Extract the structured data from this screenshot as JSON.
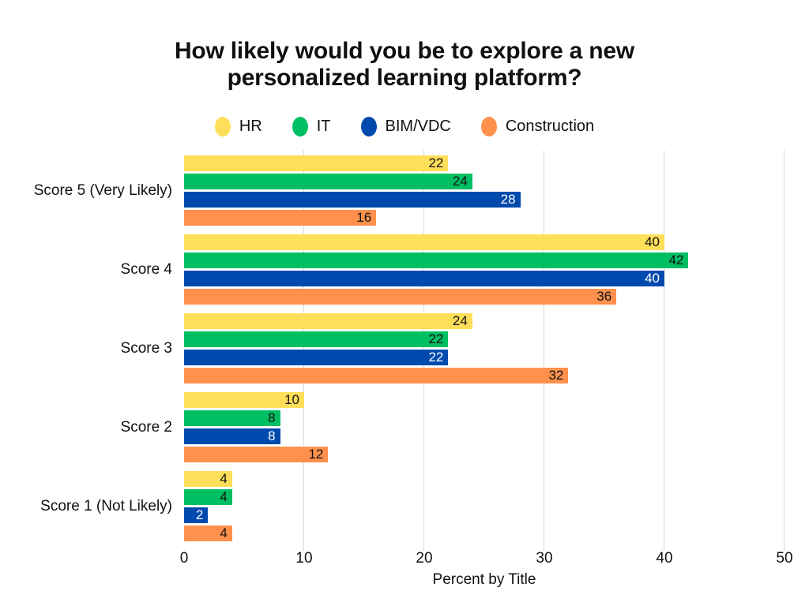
{
  "title": {
    "lines": [
      "How likely would you be to explore a new",
      "personalized learning platform?"
    ]
  },
  "chart_data": {
    "type": "bar",
    "orientation": "horizontal",
    "title": "How likely would you be to explore a new personalized learning platform?",
    "xlabel": "Percent by Title",
    "ylabel": "",
    "xlim": [
      0,
      50
    ],
    "xticks": [
      0,
      10,
      20,
      30,
      40,
      50
    ],
    "grid": true,
    "gridline_color": "#d9d9d9",
    "background_color": "#ffffff",
    "legend_position": "top",
    "categories": [
      "Score 5 (Very Likely)",
      "Score 4",
      "Score 3",
      "Score 2",
      "Score 1 (Not Likely)"
    ],
    "series": [
      {
        "name": "HR",
        "color": "#FFDE59",
        "label_color": "#111111",
        "values": [
          22,
          40,
          24,
          10,
          4
        ]
      },
      {
        "name": "IT",
        "color": "#00BF63",
        "label_color": "#111111",
        "values": [
          24,
          42,
          22,
          8,
          4
        ]
      },
      {
        "name": "BIM/VDC",
        "color": "#004AAD",
        "label_color": "#FFFFFF",
        "values": [
          28,
          40,
          22,
          8,
          2
        ]
      },
      {
        "name": "Construction",
        "color": "#FF914D",
        "label_color": "#111111",
        "values": [
          16,
          36,
          32,
          12,
          4
        ]
      }
    ]
  }
}
